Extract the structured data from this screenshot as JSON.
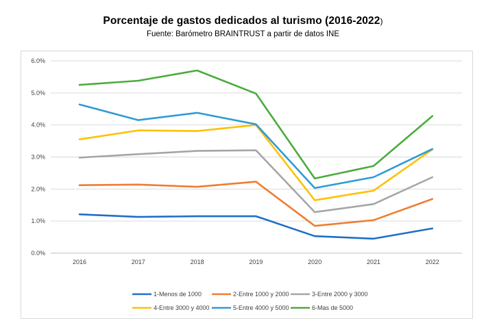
{
  "title": "Porcentaje de gastos dedicados al turismo (2016-2022",
  "title_suffix": ")",
  "subtitle": "Fuente: Barómetro BRAINTRUST a partir de datos INE",
  "chart_data": {
    "type": "line",
    "title": "Porcentaje de gastos dedicados al turismo (2016-2022)",
    "subtitle": "Fuente: Barómetro BRAINTRUST a partir de datos INE",
    "categories": [
      "2016",
      "2017",
      "2018",
      "2019",
      "2020",
      "2021",
      "2022"
    ],
    "y_ticks": [
      "0.0%",
      "1.0%",
      "2.0%",
      "3.0%",
      "4.0%",
      "5.0%",
      "6.0%"
    ],
    "ylim": [
      0,
      6
    ],
    "grid": true,
    "legend_position": "bottom",
    "series": [
      {
        "name": "1-Menos de 1000",
        "color": "#1f6fc4",
        "values": [
          1.21,
          1.13,
          1.15,
          1.15,
          0.53,
          0.45,
          0.77
        ]
      },
      {
        "name": "2-Entre 1000 y 2000",
        "color": "#ed7d31",
        "values": [
          2.12,
          2.14,
          2.07,
          2.23,
          0.85,
          1.03,
          1.69
        ]
      },
      {
        "name": "3-Entre 2000 y 3000",
        "color": "#a5a5a5",
        "values": [
          2.98,
          3.09,
          3.19,
          3.21,
          1.28,
          1.53,
          2.37
        ]
      },
      {
        "name": "4-Entre 3000 y 4000",
        "color": "#ffc000",
        "values": [
          3.55,
          3.83,
          3.81,
          4.0,
          1.65,
          1.95,
          3.24
        ]
      },
      {
        "name": "5-Entre 4000 y 5000",
        "color": "#2e9bd6",
        "values": [
          4.64,
          4.15,
          4.38,
          4.02,
          2.03,
          2.37,
          3.25
        ]
      },
      {
        "name": "6-Mas de 5000",
        "color": "#4aab3c",
        "values": [
          5.25,
          5.38,
          5.7,
          4.98,
          2.33,
          2.72,
          4.28
        ]
      }
    ]
  }
}
